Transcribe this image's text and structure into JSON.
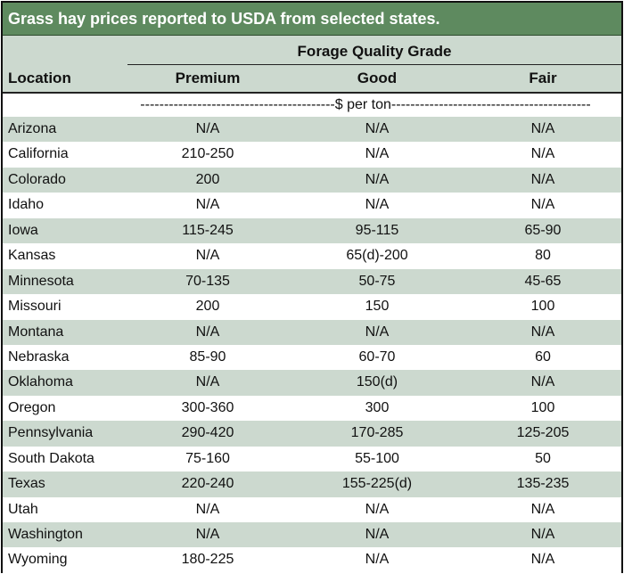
{
  "title": "Grass hay prices reported to USDA from selected states.",
  "header": {
    "group_label": "Forage Quality Grade",
    "location_label": "Location",
    "columns": [
      "Premium",
      "Good",
      "Fair"
    ]
  },
  "units_label": "-----------------------------------------$ per ton------------------------------------------",
  "rows": [
    {
      "location": "Arizona",
      "premium": "N/A",
      "good": "N/A",
      "fair": "N/A"
    },
    {
      "location": "California",
      "premium": "210-250",
      "good": "N/A",
      "fair": "N/A"
    },
    {
      "location": "Colorado",
      "premium": "200",
      "good": "N/A",
      "fair": "N/A"
    },
    {
      "location": "Idaho",
      "premium": "N/A",
      "good": "N/A",
      "fair": "N/A"
    },
    {
      "location": "Iowa",
      "premium": "115-245",
      "good": "95-115",
      "fair": "65-90"
    },
    {
      "location": "Kansas",
      "premium": "N/A",
      "good": "65(d)-200",
      "fair": "80"
    },
    {
      "location": "Minnesota",
      "premium": "70-135",
      "good": "50-75",
      "fair": "45-65"
    },
    {
      "location": "Missouri",
      "premium": "200",
      "good": "150",
      "fair": "100"
    },
    {
      "location": "Montana",
      "premium": "N/A",
      "good": "N/A",
      "fair": "N/A"
    },
    {
      "location": "Nebraska",
      "premium": "85-90",
      "good": "60-70",
      "fair": "60"
    },
    {
      "location": "Oklahoma",
      "premium": "N/A",
      "good": "150(d)",
      "fair": "N/A"
    },
    {
      "location": "Oregon",
      "premium": "300-360",
      "good": "300",
      "fair": "100"
    },
    {
      "location": "Pennsylvania",
      "premium": "290-420",
      "good": "170-285",
      "fair": "125-205"
    },
    {
      "location": "South Dakota",
      "premium": "75-160",
      "good": "55-100",
      "fair": "50"
    },
    {
      "location": "Texas",
      "premium": "220-240",
      "good": "155-225(d)",
      "fair": "135-235"
    },
    {
      "location": "Utah",
      "premium": "N/A",
      "good": "N/A",
      "fair": "N/A"
    },
    {
      "location": "Washington",
      "premium": "N/A",
      "good": "N/A",
      "fair": "N/A"
    },
    {
      "location": "Wyoming",
      "premium": "180-225",
      "good": "N/A",
      "fair": "N/A"
    }
  ]
}
